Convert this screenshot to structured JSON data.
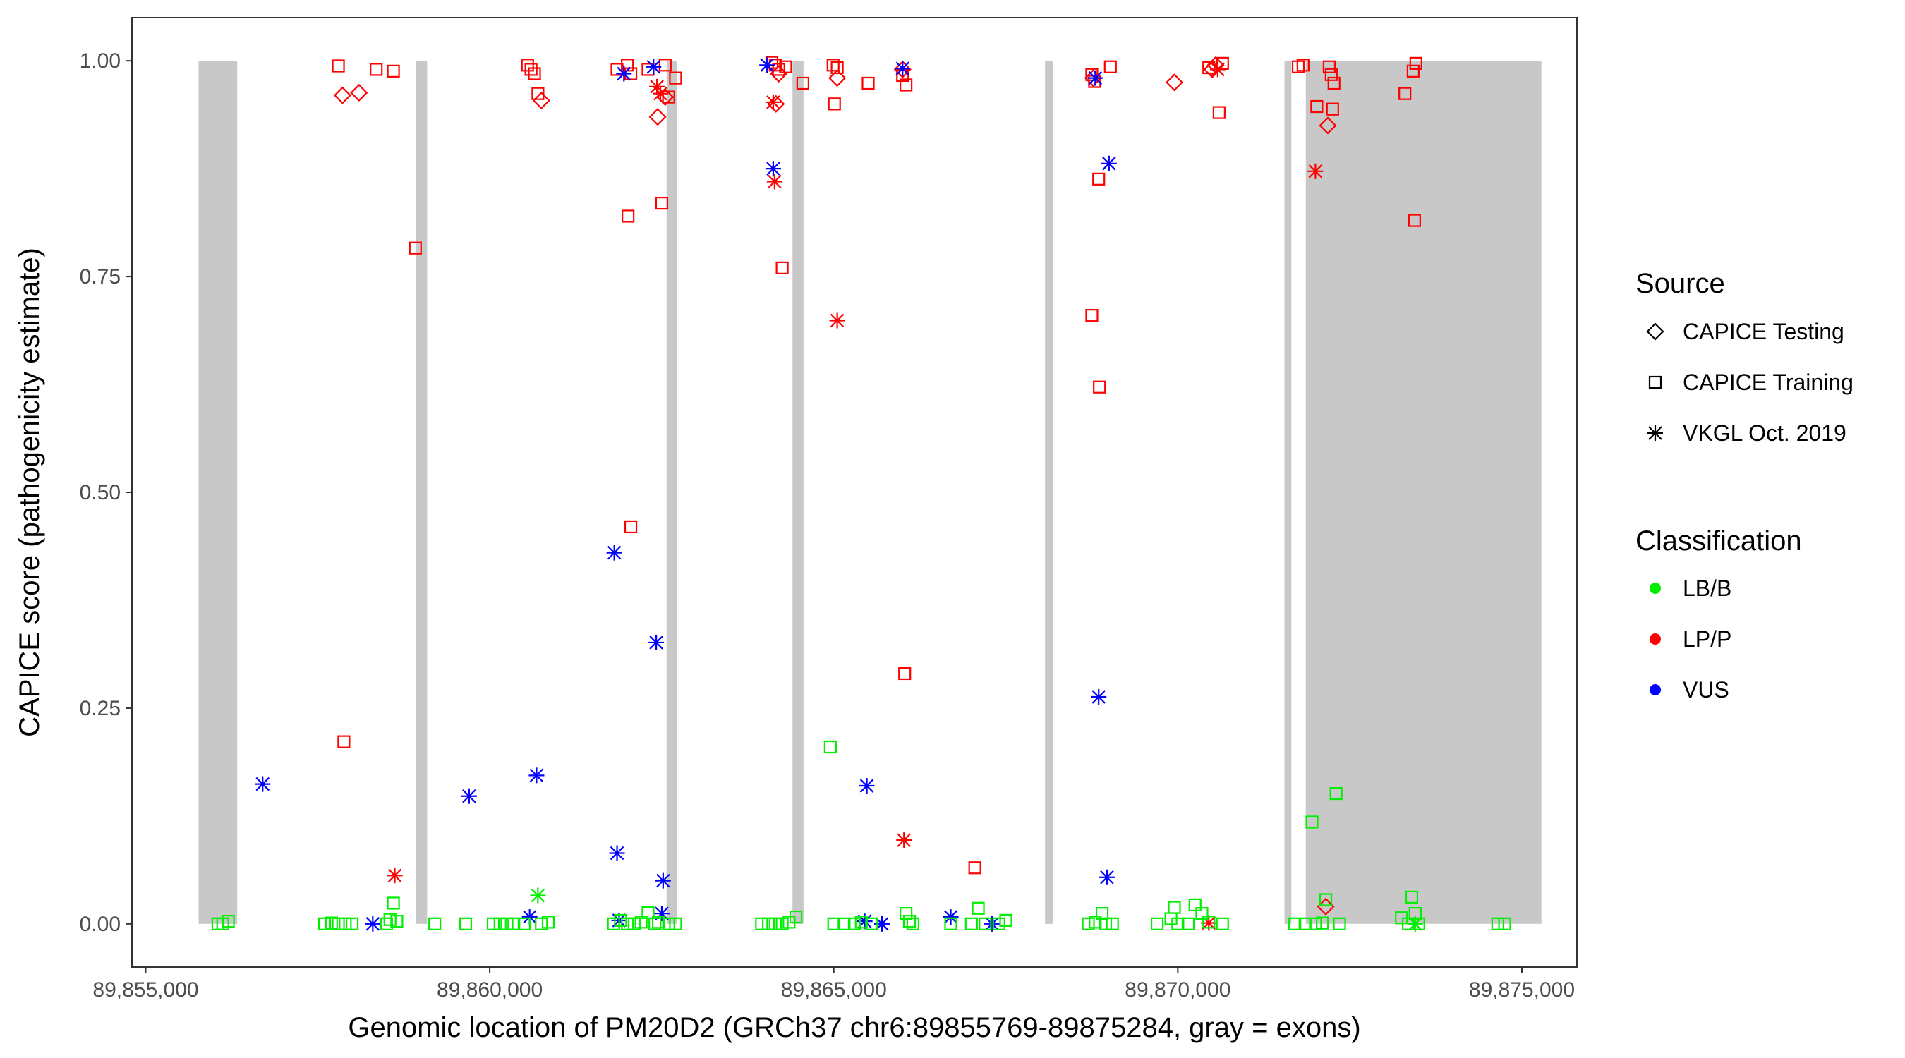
{
  "chart_data": {
    "type": "scatter",
    "title": "",
    "xlabel": "Genomic location of PM20D2 (GRCh37 chr6:89855769-89875284, gray = exons)",
    "ylabel": "CAPICE score (pathogenicity estimate)",
    "xlim": [
      89854800,
      89875800
    ],
    "ylim": [
      -0.05,
      1.05
    ],
    "x_ticks": [
      89855000,
      89860000,
      89865000,
      89870000,
      89875000
    ],
    "x_tick_labels": [
      "89,855,000",
      "89,860,000",
      "89,865,000",
      "89,870,000",
      "89,875,000"
    ],
    "y_ticks": [
      0,
      0.25,
      0.5,
      0.75,
      1
    ],
    "y_tick_labels": [
      "0.00",
      "0.25",
      "0.50",
      "0.75",
      "1.00"
    ],
    "grid": false,
    "exons": [
      [
        89855769,
        89856330
      ],
      [
        89858930,
        89859090
      ],
      [
        89862570,
        89862720
      ],
      [
        89864400,
        89864560
      ],
      [
        89868070,
        89868190
      ],
      [
        89871550,
        89871650
      ],
      [
        89871860,
        89875284
      ]
    ],
    "colors": {
      "LB/B": "#00ee00",
      "LP/P": "#ff0000",
      "VUS": "#0000ff",
      "exon": "#c8c8c8"
    },
    "legend": {
      "position": "right",
      "source_title": "Source",
      "source_items": [
        {
          "label": "CAPICE Testing",
          "shape": "diamond"
        },
        {
          "label": "CAPICE Training",
          "shape": "square"
        },
        {
          "label": "VKGL Oct. 2019",
          "shape": "asterisk"
        }
      ],
      "classification_title": "Classification",
      "classification_items": [
        {
          "label": "LB/B",
          "color": "#00ee00"
        },
        {
          "label": "LP/P",
          "color": "#ff0000"
        },
        {
          "label": "VUS",
          "color": "#0000ff"
        }
      ]
    },
    "series": [
      {
        "source": "CAPICE Testing",
        "classification": "LP/P",
        "points": [
          [
            89857860,
            0.96
          ],
          [
            89858100,
            0.963
          ],
          [
            89860750,
            0.954
          ],
          [
            89862440,
            0.935
          ],
          [
            89862550,
            0.958
          ],
          [
            89864160,
            0.95
          ],
          [
            89864200,
            0.985
          ],
          [
            89865050,
            0.98
          ],
          [
            89866000,
            0.99
          ],
          [
            89868770,
            0.98
          ],
          [
            89869950,
            0.975
          ],
          [
            89870500,
            0.99
          ],
          [
            89870550,
            0.995
          ],
          [
            89872180,
            0.925
          ],
          [
            89872150,
            0.02
          ]
        ]
      },
      {
        "source": "CAPICE Training",
        "classification": "LP/P",
        "points": [
          [
            89857800,
            0.994
          ],
          [
            89858350,
            0.99
          ],
          [
            89858600,
            0.988
          ],
          [
            89858920,
            0.783
          ],
          [
            89857880,
            0.211
          ],
          [
            89860550,
            0.995
          ],
          [
            89860600,
            0.99
          ],
          [
            89860650,
            0.985
          ],
          [
            89860700,
            0.962
          ],
          [
            89861850,
            0.99
          ],
          [
            89862000,
            0.995
          ],
          [
            89862050,
            0.985
          ],
          [
            89862300,
            0.99
          ],
          [
            89862550,
            0.995
          ],
          [
            89862700,
            0.98
          ],
          [
            89862600,
            0.958
          ],
          [
            89862010,
            0.82
          ],
          [
            89862500,
            0.835
          ],
          [
            89862050,
            0.46
          ],
          [
            89864100,
            0.998
          ],
          [
            89864150,
            0.995
          ],
          [
            89864200,
            0.99
          ],
          [
            89864300,
            0.993
          ],
          [
            89864550,
            0.974
          ],
          [
            89864990,
            0.995
          ],
          [
            89865050,
            0.992
          ],
          [
            89865010,
            0.95
          ],
          [
            89865500,
            0.974
          ],
          [
            89866000,
            0.983
          ],
          [
            89866050,
            0.972
          ],
          [
            89864250,
            0.76
          ],
          [
            89866030,
            0.29
          ],
          [
            89867050,
            0.065
          ],
          [
            89868750,
            0.984
          ],
          [
            89868790,
            0.976
          ],
          [
            89869020,
            0.993
          ],
          [
            89868850,
            0.863
          ],
          [
            89868750,
            0.705
          ],
          [
            89868860,
            0.622
          ],
          [
            89870450,
            0.992
          ],
          [
            89870650,
            0.997
          ],
          [
            89870600,
            0.94
          ],
          [
            89871750,
            0.993
          ],
          [
            89871820,
            0.995
          ],
          [
            89872020,
            0.947
          ],
          [
            89872200,
            0.993
          ],
          [
            89872230,
            0.984
          ],
          [
            89872270,
            0.974
          ],
          [
            89872250,
            0.944
          ],
          [
            89873300,
            0.962
          ],
          [
            89873420,
            0.988
          ],
          [
            89873460,
            0.997
          ],
          [
            89873440,
            0.815
          ]
        ]
      },
      {
        "source": "VKGL Oct. 2019",
        "classification": "LP/P",
        "points": [
          [
            89858620,
            0.056
          ],
          [
            89862430,
            0.97
          ],
          [
            89862480,
            0.962
          ],
          [
            89864120,
            0.952
          ],
          [
            89864140,
            0.86
          ],
          [
            89865050,
            0.699
          ],
          [
            89866020,
            0.097
          ],
          [
            89870450,
            0.001
          ],
          [
            89870580,
            0.99
          ],
          [
            89872000,
            0.872
          ]
        ]
      },
      {
        "source": "VKGL Oct. 2019",
        "classification": "VUS",
        "points": [
          [
            89856700,
            0.162
          ],
          [
            89858300,
            0.0
          ],
          [
            89859700,
            0.148
          ],
          [
            89860580,
            0.008
          ],
          [
            89860680,
            0.172
          ],
          [
            89861810,
            0.43
          ],
          [
            89861850,
            0.082
          ],
          [
            89861950,
            0.985
          ],
          [
            89862380,
            0.993
          ],
          [
            89862420,
            0.326
          ],
          [
            89862520,
            0.05
          ],
          [
            89862500,
            0.012
          ],
          [
            89861880,
            0.004
          ],
          [
            89864030,
            0.995
          ],
          [
            89864120,
            0.875
          ],
          [
            89865480,
            0.16
          ],
          [
            89865450,
            0.003
          ],
          [
            89865700,
            0.0
          ],
          [
            89866000,
            0.991
          ],
          [
            89866700,
            0.008
          ],
          [
            89867300,
            0.0
          ],
          [
            89868800,
            0.98
          ],
          [
            89868850,
            0.263
          ],
          [
            89868970,
            0.054
          ],
          [
            89869000,
            0.881
          ]
        ]
      },
      {
        "source": "CAPICE Training",
        "classification": "LB/B",
        "points": [
          [
            89856050,
            0.0
          ],
          [
            89856120,
            0.0
          ],
          [
            89856200,
            0.003
          ],
          [
            89857600,
            0.0
          ],
          [
            89857700,
            0.001
          ],
          [
            89857800,
            0.0
          ],
          [
            89857900,
            0.0
          ],
          [
            89858000,
            0.0
          ],
          [
            89858500,
            0.0
          ],
          [
            89858600,
            0.024
          ],
          [
            89858550,
            0.005
          ],
          [
            89858650,
            0.003
          ],
          [
            89859200,
            0.0
          ],
          [
            89859650,
            0.0
          ],
          [
            89860050,
            0.0
          ],
          [
            89860150,
            0.0
          ],
          [
            89860250,
            0.0
          ],
          [
            89860350,
            0.0
          ],
          [
            89860500,
            0.0
          ],
          [
            89860750,
            0.0
          ],
          [
            89860850,
            0.002
          ],
          [
            89861800,
            0.0
          ],
          [
            89861900,
            0.004
          ],
          [
            89862000,
            0.0
          ],
          [
            89862100,
            0.0
          ],
          [
            89862200,
            0.002
          ],
          [
            89862300,
            0.013
          ],
          [
            89862400,
            0.0
          ],
          [
            89862450,
            0.002
          ],
          [
            89862600,
            0.0
          ],
          [
            89862700,
            0.0
          ],
          [
            89863950,
            0.0
          ],
          [
            89864050,
            0.0
          ],
          [
            89864150,
            0.0
          ],
          [
            89864250,
            0.0
          ],
          [
            89864350,
            0.002
          ],
          [
            89864450,
            0.008
          ],
          [
            89864950,
            0.205
          ],
          [
            89865000,
            0.0
          ],
          [
            89865150,
            0.0
          ],
          [
            89865300,
            0.0
          ],
          [
            89865400,
            0.002
          ],
          [
            89865550,
            0.0
          ],
          [
            89866050,
            0.012
          ],
          [
            89866100,
            0.003
          ],
          [
            89866150,
            0.0
          ],
          [
            89866700,
            0.0
          ],
          [
            89867000,
            0.0
          ],
          [
            89867100,
            0.018
          ],
          [
            89867200,
            0.0
          ],
          [
            89867400,
            0.0
          ],
          [
            89867500,
            0.004
          ],
          [
            89868700,
            0.0
          ],
          [
            89868800,
            0.002
          ],
          [
            89868900,
            0.012
          ],
          [
            89868950,
            0.0
          ],
          [
            89869050,
            0.0
          ],
          [
            89869700,
            0.0
          ],
          [
            89869900,
            0.006
          ],
          [
            89869950,
            0.019
          ],
          [
            89870000,
            0.0
          ],
          [
            89870150,
            0.0
          ],
          [
            89870250,
            0.022
          ],
          [
            89870350,
            0.012
          ],
          [
            89870450,
            0.002
          ],
          [
            89870650,
            0.0
          ],
          [
            89871700,
            0.0
          ],
          [
            89871850,
            0.0
          ],
          [
            89871950,
            0.118
          ],
          [
            89872000,
            0.0
          ],
          [
            89872100,
            0.001
          ],
          [
            89872150,
            0.028
          ],
          [
            89872300,
            0.151
          ],
          [
            89872350,
            0.0
          ],
          [
            89873250,
            0.007
          ],
          [
            89873350,
            0.0
          ],
          [
            89873400,
            0.031
          ],
          [
            89873450,
            0.012
          ],
          [
            89873500,
            0.0
          ],
          [
            89874650,
            0.0
          ],
          [
            89874750,
            0.0
          ]
        ]
      },
      {
        "source": "VKGL Oct. 2019",
        "classification": "LB/B",
        "points": [
          [
            89860700,
            0.033
          ],
          [
            89873450,
            0.0
          ]
        ]
      }
    ]
  }
}
